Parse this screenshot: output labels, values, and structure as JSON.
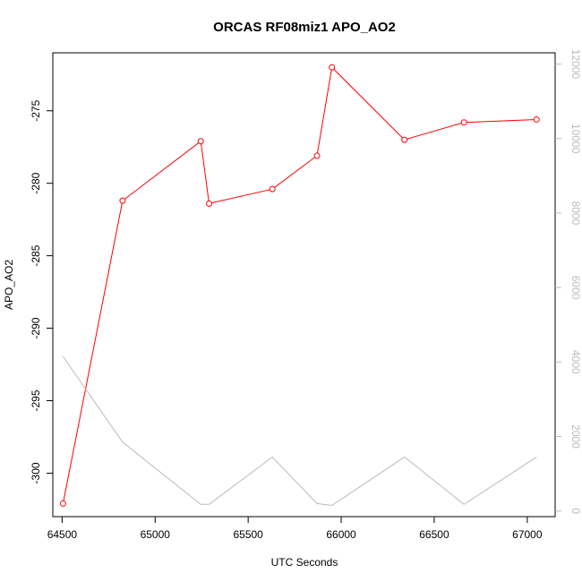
{
  "chart_data": {
    "type": "line",
    "title": "ORCAS RF08miz1 APO_AO2",
    "xlabel": "UTC Seconds",
    "ylabel": "APO_AO2",
    "y2label": "",
    "xlim": [
      64450,
      67150
    ],
    "ylim": [
      -303,
      -271
    ],
    "y2lim": [
      -150,
      12300
    ],
    "x_ticks": [
      64500,
      65000,
      65500,
      66000,
      66500,
      67000
    ],
    "y_ticks": [
      -300,
      -295,
      -290,
      -285,
      -280,
      -275
    ],
    "y2_ticks": [
      0,
      2000,
      4000,
      6000,
      8000,
      10000,
      12000
    ],
    "x_tick_labels": [
      "64500",
      "65000",
      "65500",
      "66000",
      "66500",
      "67000"
    ],
    "y_tick_labels": [
      "-300",
      "-295",
      "-290",
      "-285",
      "-280",
      "-275"
    ],
    "y2_tick_labels": [
      "0",
      "2000",
      "4000",
      "6000",
      "8000",
      "10000",
      "12000"
    ],
    "grid": false,
    "series": [
      {
        "axis": "left",
        "color": "#ff0000",
        "markers": "open-circle",
        "x": [
          64505,
          64825,
          65245,
          65290,
          65630,
          65870,
          65950,
          66340,
          66660,
          67050
        ],
        "y": [
          -302.1,
          -281.2,
          -277.1,
          -281.4,
          -280.4,
          -278.1,
          -272.0,
          -277.0,
          -275.8,
          -275.6
        ]
      },
      {
        "axis": "right",
        "color": "#bbbbbb",
        "markers": "none",
        "x": [
          64505,
          64825,
          65245,
          65290,
          65630,
          65870,
          65950,
          66340,
          66660,
          67050
        ],
        "y": [
          4150,
          1850,
          180,
          180,
          1450,
          200,
          150,
          1450,
          180,
          1450
        ]
      }
    ]
  }
}
